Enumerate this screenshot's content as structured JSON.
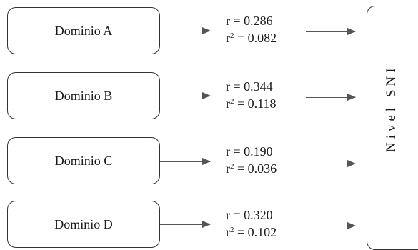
{
  "domains": [
    {
      "label": "Dominio A",
      "r": "r  = 0.286",
      "r2_prefix": "r",
      "r2_sup": "2",
      "r2_value": " = 0.082"
    },
    {
      "label": "Dominio B",
      "r": "r  = 0.344",
      "r2_prefix": "r",
      "r2_sup": "2",
      "r2_value": " = 0.118"
    },
    {
      "label": "Dominio C",
      "r": "r  = 0.190",
      "r2_prefix": "r",
      "r2_sup": "2",
      "r2_value": " = 0.036"
    },
    {
      "label": "Dominio D",
      "r": "r  = 0.320",
      "r2_prefix": "r",
      "r2_sup": "2",
      "r2_value": " = 0.102"
    }
  ],
  "target": {
    "label": "Nivel SNI"
  }
}
